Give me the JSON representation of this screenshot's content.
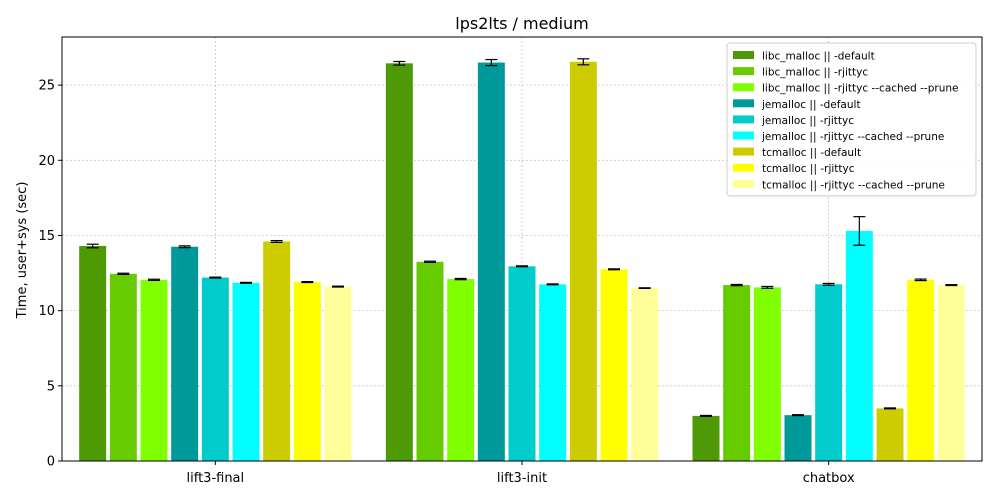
{
  "chart_data": {
    "type": "bar",
    "title": "lps2lts / medium",
    "xlabel": "",
    "ylabel": "Time, user+sys (sec)",
    "ylim": [
      0,
      28.2
    ],
    "yticks": [
      0,
      5,
      10,
      15,
      20,
      25
    ],
    "grid": true,
    "legend_position": "top-right",
    "categories": [
      "lift3-final",
      "lift3-init",
      "chatbox"
    ],
    "series": [
      {
        "name": "libc_malloc || -default",
        "color": "#4e9a06",
        "values": [
          14.3,
          26.45,
          3.0
        ],
        "errors": [
          0.12,
          0.12,
          0.03
        ]
      },
      {
        "name": "libc_malloc || -rjittyc",
        "color": "#66cc00",
        "values": [
          12.45,
          13.25,
          11.7
        ],
        "errors": [
          0.04,
          0.04,
          0.04
        ]
      },
      {
        "name": "libc_malloc || -rjittyc --cached --prune",
        "color": "#80ff00",
        "values": [
          12.05,
          12.1,
          11.55
        ],
        "errors": [
          0.04,
          0.04,
          0.06
        ]
      },
      {
        "name": "jemalloc || -default",
        "color": "#009999",
        "values": [
          14.25,
          26.5,
          3.05
        ],
        "errors": [
          0.06,
          0.2,
          0.03
        ]
      },
      {
        "name": "jemalloc || -rjittyc",
        "color": "#00cccc",
        "values": [
          12.2,
          12.95,
          11.75
        ],
        "errors": [
          0.03,
          0.03,
          0.06
        ]
      },
      {
        "name": "jemalloc || -rjittyc --cached --prune",
        "color": "#00ffff",
        "values": [
          11.85,
          11.75,
          15.3
        ],
        "errors": [
          0.03,
          0.03,
          0.95
        ]
      },
      {
        "name": "tcmalloc || -default",
        "color": "#cccc00",
        "values": [
          14.6,
          26.55,
          3.5
        ],
        "errors": [
          0.06,
          0.2,
          0.03
        ]
      },
      {
        "name": "tcmalloc || -rjittyc",
        "color": "#ffff00",
        "values": [
          11.9,
          12.75,
          12.05
        ],
        "errors": [
          0.03,
          0.03,
          0.05
        ]
      },
      {
        "name": "tcmalloc || -rjittyc --cached --prune",
        "color": "#ffff99",
        "values": [
          11.6,
          11.5,
          11.7
        ],
        "errors": [
          0.03,
          0.02,
          0.03
        ]
      }
    ]
  }
}
